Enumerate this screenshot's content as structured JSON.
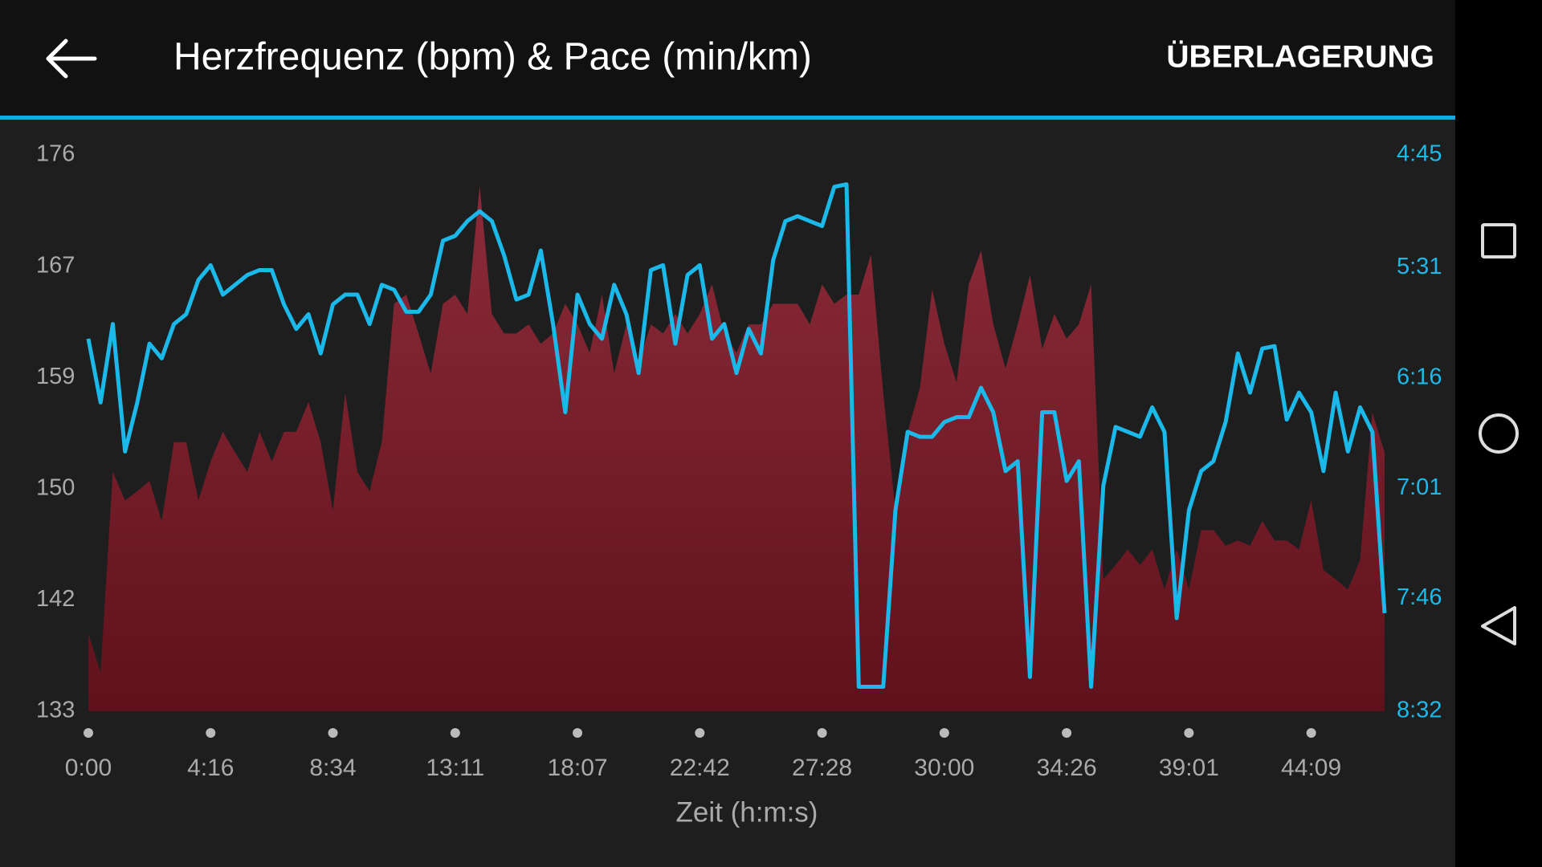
{
  "app_bar": {
    "action": "ÜBERLAGERUNG"
  },
  "chart_data": {
    "type": "combo",
    "title": "Herzfrequenz (bpm) & Pace (min/km)",
    "x_label": "Zeit (h:m:s)",
    "xlim": [
      0,
      106
    ],
    "xticks": [
      {
        "value": 0,
        "label": "0:00"
      },
      {
        "value": 10,
        "label": "4:16"
      },
      {
        "value": 20,
        "label": "8:34"
      },
      {
        "value": 30,
        "label": "13:11"
      },
      {
        "value": 40,
        "label": "18:07"
      },
      {
        "value": 50,
        "label": "22:42"
      },
      {
        "value": 60,
        "label": "27:28"
      },
      {
        "value": 70,
        "label": "30:00"
      },
      {
        "value": 80,
        "label": "34:26"
      },
      {
        "value": 90,
        "label": "39:01"
      },
      {
        "value": 100,
        "label": "44:09"
      }
    ],
    "ylim": [
      133,
      176
    ],
    "yticks": [
      133,
      {
        "value": 141.6,
        "label": "142"
      },
      {
        "value": 150.2,
        "label": "150"
      },
      {
        "value": 158.8,
        "label": "159"
      },
      {
        "value": 167.4,
        "label": "167"
      },
      176
    ],
    "y2lim": [
      512,
      285
    ],
    "y2ticks": [
      {
        "value": 285,
        "label": "4:45"
      },
      {
        "value": 331,
        "label": "5:31"
      },
      {
        "value": 376,
        "label": "6:16"
      },
      {
        "value": 421,
        "label": "7:01"
      },
      {
        "value": 466,
        "label": "7:46"
      },
      {
        "value": 512,
        "label": "8:32"
      }
    ],
    "series": [
      {
        "type": "area",
        "color": "#8c2b3a",
        "color2": "#5f111b",
        "values": [
          139,
          136,
          151.5,
          149.3,
          150,
          150.8,
          147.7,
          153.8,
          153.8,
          149.3,
          152.3,
          154.6,
          153,
          151.5,
          154.6,
          152.3,
          154.6,
          154.6,
          156.9,
          153.8,
          148.5,
          157.6,
          151.5,
          150,
          153.8,
          164.5,
          165.2,
          162.2,
          159.1,
          164.5,
          165.2,
          163.7,
          173.6,
          163.7,
          162.2,
          162.2,
          162.9,
          161.4,
          162.2,
          164.5,
          162.9,
          160.7,
          165.2,
          159.1,
          162.9,
          159.9,
          162.9,
          162.2,
          163.7,
          162.2,
          163.7,
          166,
          162.2,
          160.7,
          162.9,
          162.9,
          164.5,
          164.5,
          164.5,
          162.9,
          166,
          164.5,
          165.2,
          165.2,
          168.3,
          157.6,
          148.5,
          154.6,
          158,
          165.6,
          161.4,
          158.4,
          166,
          168.6,
          162.9,
          159.5,
          162.9,
          166.7,
          161,
          163.7,
          161.8,
          162.9,
          166,
          143.2,
          144.3,
          145.5,
          144.3,
          145.5,
          142.4,
          145.5,
          142.4,
          147,
          147,
          145.8,
          146.2,
          145.8,
          147.7,
          146.2,
          146.2,
          145.5,
          149.3,
          143.9,
          143.2,
          142.4,
          144.7,
          156.1,
          153
        ]
      },
      {
        "type": "line",
        "axis": "y2",
        "color": "#1bb9ea",
        "values": [
          360,
          386,
          354,
          406,
          386,
          362,
          368,
          354,
          350,
          336,
          330,
          342,
          338,
          334,
          332,
          332,
          346,
          356,
          350,
          366,
          346,
          342,
          342,
          354,
          338,
          340,
          349,
          349,
          342,
          320,
          318,
          312,
          308,
          312,
          326,
          344,
          342,
          324,
          354,
          390,
          342,
          354,
          360,
          338,
          350,
          374,
          332,
          330,
          362,
          334,
          330,
          360,
          354,
          374,
          356,
          366,
          328,
          312,
          310,
          312,
          314,
          298,
          297,
          502,
          502,
          502,
          430,
          398,
          400,
          400,
          394,
          392,
          392,
          380,
          390,
          414,
          410,
          498,
          390,
          390,
          418,
          410,
          502,
          420,
          396,
          398,
          400,
          388,
          398,
          474,
          430,
          414,
          410,
          394,
          366,
          382,
          364,
          363,
          393,
          382,
          390,
          414,
          382,
          406,
          388,
          398,
          472
        ]
      }
    ]
  }
}
